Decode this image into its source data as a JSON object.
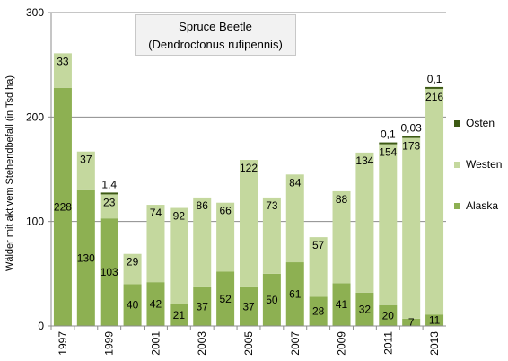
{
  "chart_data": {
    "type": "bar",
    "stacked": true,
    "title": "Spruce Beetle",
    "subtitle": "(Dendroctonus rufipennis)",
    "ylabel": "Wälder mit aktivem Stehendbefall (in Tsd ha)",
    "xlabel": "",
    "ylim": [
      0,
      300
    ],
    "yticks": [
      0,
      100,
      200,
      300
    ],
    "grid": true,
    "legend_position": "right",
    "categories": [
      "1997",
      "1998",
      "1999",
      "2000",
      "2001",
      "2002",
      "2003",
      "2004",
      "2005",
      "2006",
      "2007",
      "2008",
      "2009",
      "2010",
      "2011",
      "2012",
      "2013"
    ],
    "x_tick_labels": [
      "1997",
      "",
      "1999",
      "",
      "2001",
      "",
      "2003",
      "",
      "2005",
      "",
      "2007",
      "",
      "2009",
      "",
      "2011",
      "",
      "2013"
    ],
    "series": [
      {
        "name": "Alaska",
        "color": "#8db052",
        "values": [
          228,
          130,
          103,
          40,
          42,
          21,
          37,
          52,
          37,
          50,
          61,
          28,
          41,
          32,
          20,
          7,
          11
        ],
        "labels": [
          "228",
          "130",
          "103",
          "40",
          "42",
          "21",
          "37",
          "52",
          "37",
          "50",
          "61",
          "28",
          "41",
          "32",
          "20",
          "7",
          "11"
        ]
      },
      {
        "name": "Westen",
        "color": "#c4d89e",
        "values": [
          33,
          37,
          23,
          29,
          74,
          92,
          86,
          66,
          122,
          73,
          84,
          57,
          88,
          134,
          154,
          173,
          216
        ],
        "labels": [
          "33",
          "37",
          "23",
          "29",
          "74",
          "92",
          "86",
          "66",
          "122",
          "73",
          "84",
          "57",
          "88",
          "134",
          "154",
          "173",
          "216"
        ]
      },
      {
        "name": "Osten",
        "color": "#3d5a14",
        "values": [
          0,
          0,
          1.4,
          0,
          0,
          0,
          0,
          0,
          0,
          0,
          0,
          0,
          0,
          0,
          0.1,
          0.03,
          0.1
        ],
        "labels": [
          "",
          "",
          "1,4",
          "",
          "",
          "",
          "",
          "",
          "",
          "",
          "",
          "",
          "",
          "",
          "0,1",
          "0,03",
          "0,1"
        ]
      }
    ]
  }
}
